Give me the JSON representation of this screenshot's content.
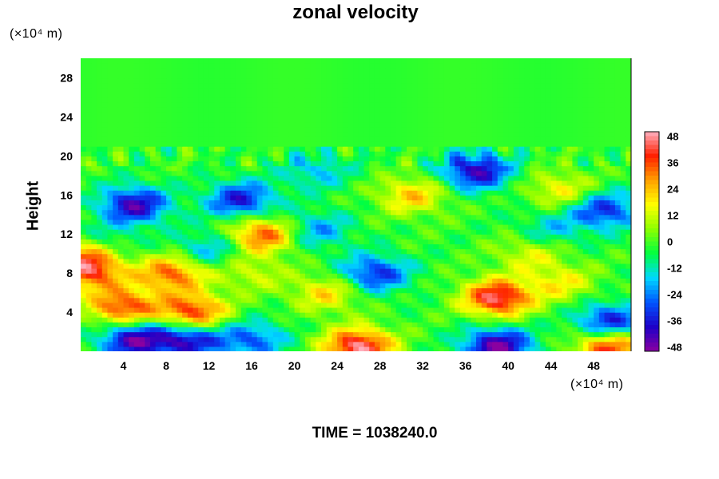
{
  "chart_data": {
    "type": "heatmap",
    "title": "zonal velocity",
    "ylabel": "Height",
    "xlabel": "",
    "x_unit": "(×10⁴ m)",
    "y_unit": "(×10⁴ m)",
    "xlim": [
      0,
      51.5
    ],
    "ylim": [
      0,
      30
    ],
    "x_ticks": [
      4,
      8,
      12,
      16,
      20,
      24,
      28,
      32,
      36,
      40,
      44,
      48
    ],
    "y_ticks": [
      4,
      8,
      12,
      16,
      20,
      24,
      28
    ],
    "colorbar": {
      "range": [
        -50,
        50
      ],
      "ticks": [
        48,
        36,
        24,
        12,
        0,
        -12,
        -24,
        -36,
        -48
      ],
      "colormap": [
        "#8a00a0",
        "#1e00c8",
        "#0055ff",
        "#00d8ff",
        "#00ff40",
        "#8cff00",
        "#ffff00",
        "#ffa000",
        "#ff2000",
        "#ffb0c0"
      ]
    },
    "background_value": -2,
    "features": [
      {
        "x": 26,
        "y": 0.5,
        "value": 48
      },
      {
        "x": 39,
        "y": 5.5,
        "value": 46
      },
      {
        "x": 4,
        "y": 4.5,
        "value": 38
      },
      {
        "x": 10.5,
        "y": 4,
        "value": 40
      },
      {
        "x": 8.5,
        "y": 8,
        "value": 34
      },
      {
        "x": 1,
        "y": 8,
        "value": 32
      },
      {
        "x": 17,
        "y": 12,
        "value": 36
      },
      {
        "x": 31,
        "y": 16,
        "value": 22
      },
      {
        "x": 45,
        "y": 16.5,
        "value": 18
      },
      {
        "x": 49.5,
        "y": 0.5,
        "value": 40
      },
      {
        "x": 42,
        "y": 10,
        "value": 14
      },
      {
        "x": 23,
        "y": 6,
        "value": 20
      },
      {
        "x": 39,
        "y": 0.5,
        "value": -48
      },
      {
        "x": 5,
        "y": 1.2,
        "value": -44
      },
      {
        "x": 10,
        "y": 1.2,
        "value": -40
      },
      {
        "x": 16,
        "y": 1.2,
        "value": -28
      },
      {
        "x": 5,
        "y": 15,
        "value": -42
      },
      {
        "x": 15,
        "y": 15.5,
        "value": -36
      },
      {
        "x": 37,
        "y": 18.5,
        "value": -42
      },
      {
        "x": 27.5,
        "y": 8,
        "value": -34
      },
      {
        "x": 49.5,
        "y": 3,
        "value": -38
      },
      {
        "x": 49,
        "y": 14.5,
        "value": -34
      },
      {
        "x": 22,
        "y": 12.5,
        "value": -22
      },
      {
        "x": 2,
        "y": 11,
        "value": -18
      },
      {
        "x": 12,
        "y": 10.5,
        "value": -20
      },
      {
        "x": 22,
        "y": 18.5,
        "value": -18
      },
      {
        "x": 44,
        "y": 12.5,
        "value": -16
      },
      {
        "x": 0.5,
        "y": 10,
        "value": 30
      },
      {
        "x": 16,
        "y": 8,
        "value": 12
      },
      {
        "x": 45,
        "y": 7,
        "value": 16
      }
    ]
  },
  "footer": {
    "time_label": "TIME = 1038240.0"
  }
}
